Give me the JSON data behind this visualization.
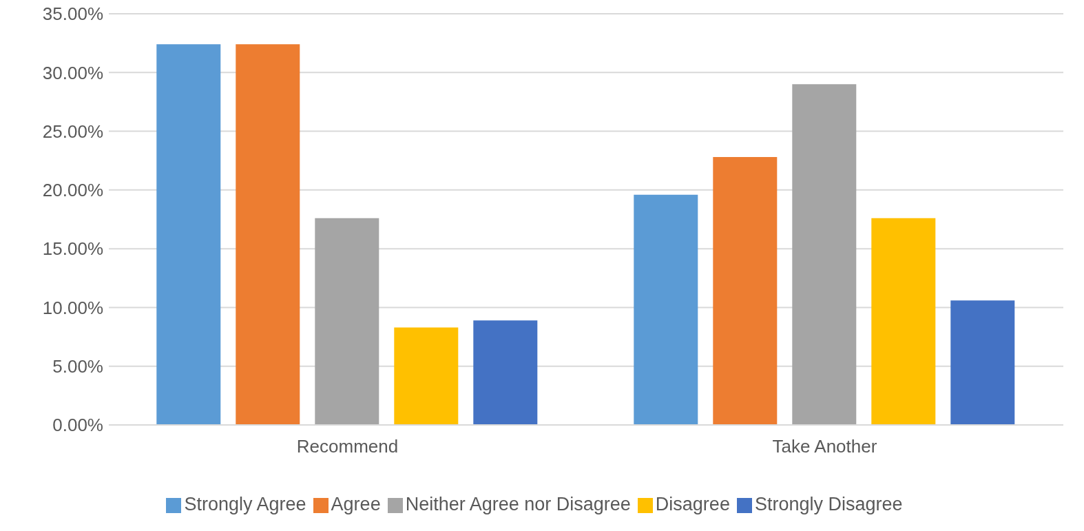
{
  "chart_data": {
    "type": "bar",
    "categories": [
      "Recommend",
      "Take Another"
    ],
    "series": [
      {
        "name": "Strongly Agree",
        "color": "#5b9bd5",
        "values": [
          32.4,
          19.6
        ]
      },
      {
        "name": "Agree",
        "color": "#ed7d31",
        "values": [
          32.4,
          22.8
        ]
      },
      {
        "name": "Neither Agree nor Disagree",
        "color": "#a5a5a5",
        "values": [
          17.6,
          29.0
        ]
      },
      {
        "name": "Disagree",
        "color": "#ffc000",
        "values": [
          8.3,
          17.6
        ]
      },
      {
        "name": "Strongly Disagree",
        "color": "#4472c4",
        "values": [
          8.9,
          10.6
        ]
      }
    ],
    "ylim": [
      0,
      35
    ],
    "yticks": [
      {
        "value": 0,
        "label": "0.00%"
      },
      {
        "value": 5,
        "label": "5.00%"
      },
      {
        "value": 10,
        "label": "10.00%"
      },
      {
        "value": 15,
        "label": "15.00%"
      },
      {
        "value": 20,
        "label": "20.00%"
      },
      {
        "value": 25,
        "label": "25.00%"
      },
      {
        "value": 30,
        "label": "30.00%"
      },
      {
        "value": 35,
        "label": "35.00%"
      }
    ],
    "grid": "y",
    "legend": "bottom"
  }
}
